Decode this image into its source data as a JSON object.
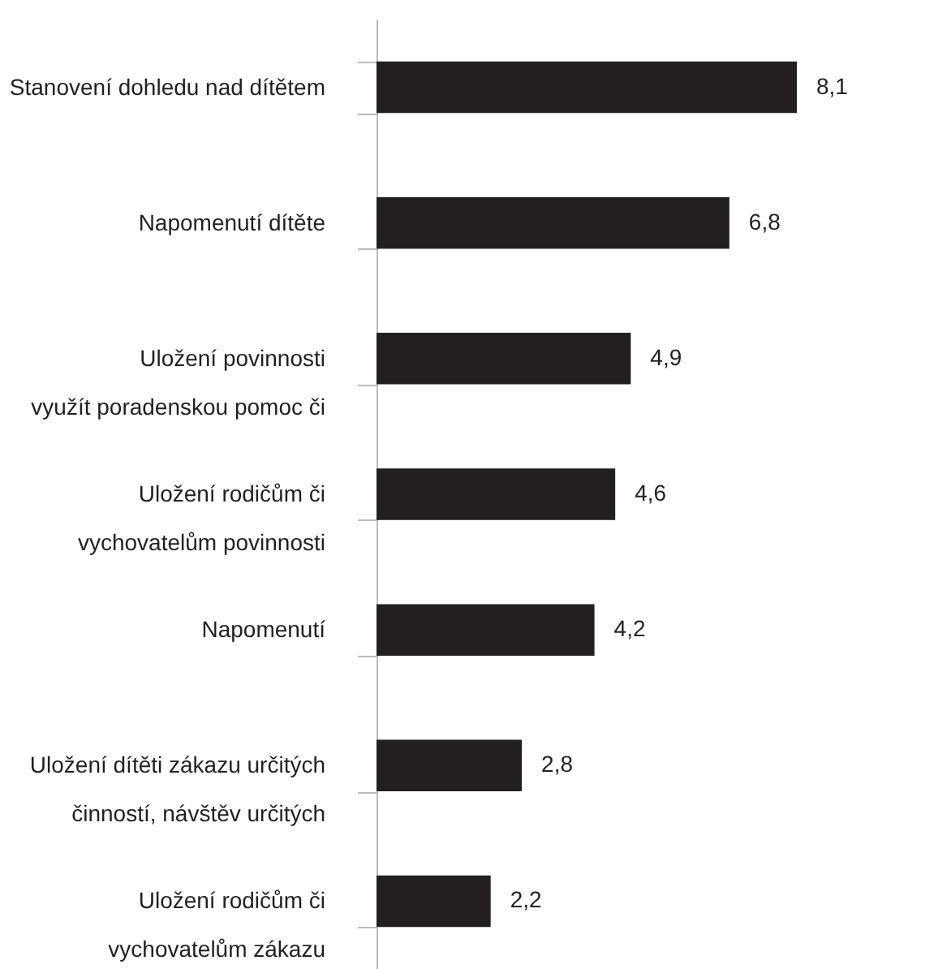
{
  "chart_data": {
    "type": "bar",
    "orientation": "horizontal",
    "categories": [
      "Stanovení dohledu nad dítětem",
      "Napomenutí dítěte",
      "Uložení povinnosti\nvyužít poradenskou pomoc či",
      "Uložení rodičům či\nvychovatelům povinnosti",
      "Napomenutí",
      "Uložení dítěti zákazu určitých\nčinností, návštěv určitých",
      "Uložení rodičům či\nvychovatelům zákazu"
    ],
    "values": [
      8.1,
      6.8,
      4.9,
      4.6,
      4.2,
      2.8,
      2.2
    ],
    "value_labels": [
      "8,1",
      "6,8",
      "4,9",
      "4,6",
      "4,2",
      "2,8",
      "2,2"
    ],
    "color": "#231f20",
    "grid": false
  }
}
